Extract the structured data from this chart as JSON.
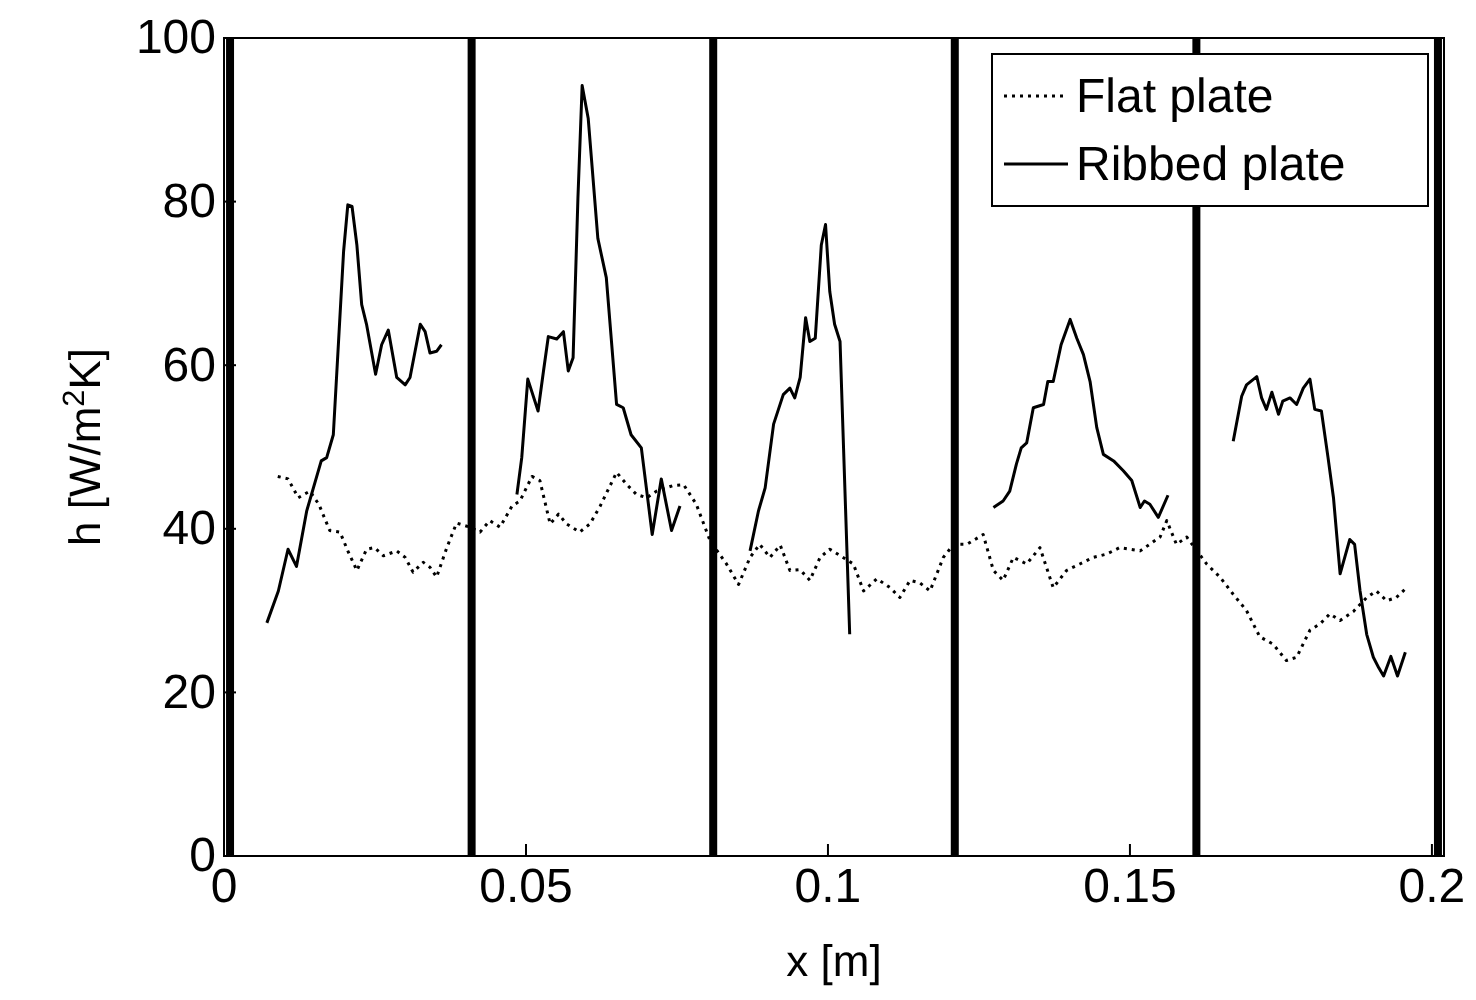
{
  "chart_data": {
    "type": "line",
    "xlabel": "x [m]",
    "ylabel": "h [W/m$^{2}$K]",
    "xlim": [
      0,
      0.202
    ],
    "xticks": [
      0,
      0.05,
      0.1,
      0.15,
      0.2
    ],
    "ylim": [
      0,
      100
    ],
    "yticks": [
      0,
      20,
      40,
      60,
      80,
      100
    ],
    "grid": false,
    "legend": "top right",
    "marker": "none",
    "ref_lines": [
      {
        "axis": "x",
        "value": 0.001,
        "color": "#000000"
      },
      {
        "axis": "x",
        "value": 0.041,
        "color": "#000000"
      },
      {
        "axis": "x",
        "value": 0.081,
        "color": "#000000"
      },
      {
        "axis": "x",
        "value": 0.121,
        "color": "#000000"
      },
      {
        "axis": "x",
        "value": 0.161,
        "color": "#000000"
      },
      {
        "axis": "x",
        "value": 0.201,
        "color": "#000000"
      }
    ],
    "series": [
      {
        "name": "Flat plate",
        "color": "#000000",
        "line_style": "dotted",
        "x": [
          0.0089,
          0.0106,
          0.0123,
          0.0142,
          0.0157,
          0.0175,
          0.0192,
          0.0205,
          0.022,
          0.0236,
          0.0249,
          0.0264,
          0.0286,
          0.03,
          0.0313,
          0.033,
          0.0341,
          0.0352,
          0.0369,
          0.0385,
          0.0407,
          0.0424,
          0.044,
          0.0457,
          0.0477,
          0.049,
          0.051,
          0.0523,
          0.054,
          0.0554,
          0.0567,
          0.0589,
          0.0606,
          0.0623,
          0.065,
          0.0667,
          0.0683,
          0.07,
          0.0716,
          0.0744,
          0.0761,
          0.0782,
          0.0805,
          0.0832,
          0.0852,
          0.0871,
          0.0887,
          0.0904,
          0.0921,
          0.0937,
          0.0954,
          0.097,
          0.0987,
          0.1003,
          0.1025,
          0.1042,
          0.1059,
          0.1081,
          0.1103,
          0.1119,
          0.1136,
          0.1152,
          0.1169,
          0.1191,
          0.1208,
          0.123,
          0.1257,
          0.1274,
          0.129,
          0.1307,
          0.1329,
          0.1351,
          0.1373,
          0.1395,
          0.1417,
          0.1439,
          0.1461,
          0.1483,
          0.1517,
          0.155,
          0.1561,
          0.1577,
          0.1594,
          0.1627,
          0.1649,
          0.1671,
          0.1693,
          0.1715,
          0.1737,
          0.1759,
          0.1776,
          0.1798,
          0.1815,
          0.1831,
          0.1848,
          0.187,
          0.1892,
          0.1908,
          0.1925,
          0.1941,
          0.1958
        ],
        "values": [
          46.4,
          46.1,
          43.8,
          44.6,
          43.0,
          39.8,
          39.6,
          37.3,
          34.9,
          37.5,
          37.7,
          36.7,
          37.3,
          36.5,
          34.7,
          35.9,
          35.3,
          34.1,
          37.7,
          40.7,
          40.2,
          39.6,
          41.0,
          40.2,
          42.8,
          43.4,
          46.4,
          45.9,
          40.6,
          41.8,
          40.6,
          39.6,
          40.6,
          42.8,
          46.9,
          45.4,
          44.2,
          43.8,
          44.6,
          45.3,
          45.4,
          43.0,
          38.5,
          35.7,
          33.2,
          36.5,
          38.1,
          36.5,
          38.0,
          34.9,
          35.0,
          33.7,
          36.5,
          37.5,
          36.5,
          35.7,
          32.4,
          33.9,
          32.8,
          31.6,
          33.7,
          33.4,
          32.4,
          36.5,
          38.1,
          38.1,
          39.3,
          34.9,
          33.7,
          36.5,
          35.7,
          37.7,
          32.8,
          34.9,
          35.7,
          36.5,
          36.9,
          37.7,
          37.3,
          39.0,
          41.0,
          38.1,
          39.0,
          35.7,
          34.1,
          32.0,
          30.0,
          26.8,
          25.9,
          23.9,
          24.3,
          27.6,
          28.4,
          29.6,
          28.8,
          29.9,
          31.6,
          32.4,
          31.2,
          31.6,
          32.8
        ]
      },
      {
        "name": "Ribbed plate",
        "color": "#000000",
        "line_style": "solid",
        "x": [
          0.0071,
          0.009,
          0.0106,
          0.012,
          0.0137,
          0.0161,
          0.017,
          0.0181,
          0.0198,
          0.0205,
          0.0212,
          0.022,
          0.0228,
          0.0236,
          0.0251,
          0.0261,
          0.0272,
          0.0286,
          0.03,
          0.0308,
          0.0325,
          0.0333,
          0.0341,
          0.0352,
          0.036,
          0.042,
          0.0485,
          0.0493,
          0.0503,
          0.052,
          0.0529,
          0.0537,
          0.0551,
          0.0562,
          0.057,
          0.0578,
          0.0586,
          0.0593,
          0.0603,
          0.0619,
          0.0633,
          0.065,
          0.0661,
          0.0674,
          0.0691,
          0.0709,
          0.0724,
          0.0741,
          0.0755,
          0.082,
          0.0871,
          0.0885,
          0.0896,
          0.091,
          0.0926,
          0.0937,
          0.0945,
          0.0954,
          0.0963,
          0.097,
          0.0979,
          0.0989,
          0.0996,
          0.1003,
          0.1011,
          0.102,
          0.1036,
          0.115,
          0.1274,
          0.129,
          0.1301,
          0.1312,
          0.132,
          0.1329,
          0.134,
          0.1357,
          0.1364,
          0.1373,
          0.1386,
          0.1401,
          0.1412,
          0.1423,
          0.1434,
          0.1445,
          0.1456,
          0.1473,
          0.1489,
          0.1503,
          0.1517,
          0.1524,
          0.1533,
          0.1547,
          0.1563,
          0.162,
          0.1671,
          0.1685,
          0.1693,
          0.171,
          0.1718,
          0.1726,
          0.1735,
          0.1746,
          0.1753,
          0.1765,
          0.1776,
          0.1787,
          0.1798,
          0.1806,
          0.1817,
          0.1828,
          0.1837,
          0.1848,
          0.1864,
          0.1872,
          0.1881,
          0.1892,
          0.1903,
          0.1912,
          0.192,
          0.1932,
          0.1943,
          0.1956
        ],
        "values": [
          28.5,
          32.4,
          37.5,
          35.4,
          42.2,
          48.3,
          48.7,
          51.5,
          73.9,
          79.6,
          79.4,
          74.7,
          67.4,
          65.0,
          58.9,
          62.5,
          64.3,
          58.5,
          57.6,
          58.5,
          65.0,
          64.1,
          61.5,
          61.7,
          62.5,
          null,
          44.2,
          48.7,
          58.3,
          54.4,
          59.3,
          63.5,
          63.2,
          64.1,
          59.3,
          60.9,
          80.4,
          94.2,
          90.2,
          75.5,
          70.7,
          55.2,
          54.8,
          51.5,
          49.9,
          39.3,
          46.1,
          39.8,
          42.8,
          null,
          37.3,
          42.2,
          45.0,
          52.8,
          56.4,
          57.2,
          56.0,
          58.5,
          65.8,
          62.9,
          63.3,
          74.7,
          77.2,
          69.0,
          65.0,
          62.9,
          27.1,
          null,
          42.6,
          43.4,
          44.6,
          47.9,
          49.9,
          50.5,
          54.8,
          55.2,
          58.0,
          58.0,
          62.5,
          65.6,
          63.3,
          61.3,
          58.0,
          52.4,
          49.1,
          48.3,
          47.1,
          45.9,
          42.6,
          43.4,
          43.0,
          41.4,
          44.1,
          null,
          50.7,
          56.2,
          57.6,
          58.6,
          56.0,
          54.6,
          56.7,
          54.0,
          55.6,
          56.0,
          55.2,
          57.2,
          58.3,
          54.6,
          54.4,
          48.7,
          43.8,
          34.5,
          38.7,
          38.1,
          32.4,
          27.1,
          24.3,
          23.0,
          22.0,
          24.4,
          22.0,
          24.9
        ]
      }
    ]
  }
}
